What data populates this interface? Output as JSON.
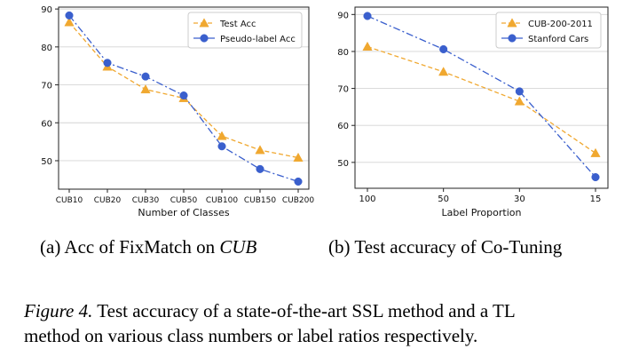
{
  "chart_data": [
    {
      "type": "line",
      "title": "",
      "xlabel": "Number of Classes",
      "ylabel": "",
      "categories": [
        "CUB10",
        "CUB20",
        "CUB30",
        "CUB50",
        "CUB100",
        "CUB150",
        "CUB200"
      ],
      "yticks": [
        50,
        60,
        70,
        80,
        90
      ],
      "ylim": [
        42.5,
        90.5
      ],
      "grid": "horizontal",
      "legend_position": "top-right",
      "series": [
        {
          "name": "Test Acc",
          "color": "#f0a830",
          "marker": "triangle",
          "dash": "dashed",
          "values": [
            86.5,
            74.8,
            68.8,
            66.5,
            56.5,
            52.8,
            50.8
          ]
        },
        {
          "name": "Pseudo-label Acc",
          "color": "#3a5fcd",
          "marker": "circle",
          "dash": "dashdot",
          "values": [
            88.3,
            75.8,
            72.2,
            67.2,
            53.8,
            47.8,
            44.5
          ]
        }
      ],
      "caption": "(a)  Acc of FixMatch on",
      "caption_em": "CUB"
    },
    {
      "type": "line",
      "title": "",
      "xlabel": "Label Proportion",
      "ylabel": "",
      "categories": [
        "100",
        "50",
        "30",
        "15"
      ],
      "yticks": [
        50,
        60,
        70,
        80,
        90
      ],
      "ylim": [
        43,
        92
      ],
      "grid": "horizontal",
      "legend_position": "top-right",
      "series": [
        {
          "name": "CUB-200-2011",
          "color": "#f0a830",
          "marker": "triangle",
          "dash": "dashed",
          "values": [
            81.3,
            74.5,
            66.5,
            52.5
          ]
        },
        {
          "name": "Stanford Cars",
          "color": "#3a5fcd",
          "marker": "circle",
          "dash": "dashdot",
          "values": [
            89.6,
            80.6,
            69.2,
            46.0
          ]
        }
      ],
      "caption": "(b)  Test accuracy of Co-Tuning"
    }
  ],
  "figure": {
    "label": "Figure 4.",
    "line1": " Test accuracy of a state-of-the-art SSL method and a TL",
    "line2": "method on various class numbers or label ratios respectively."
  }
}
